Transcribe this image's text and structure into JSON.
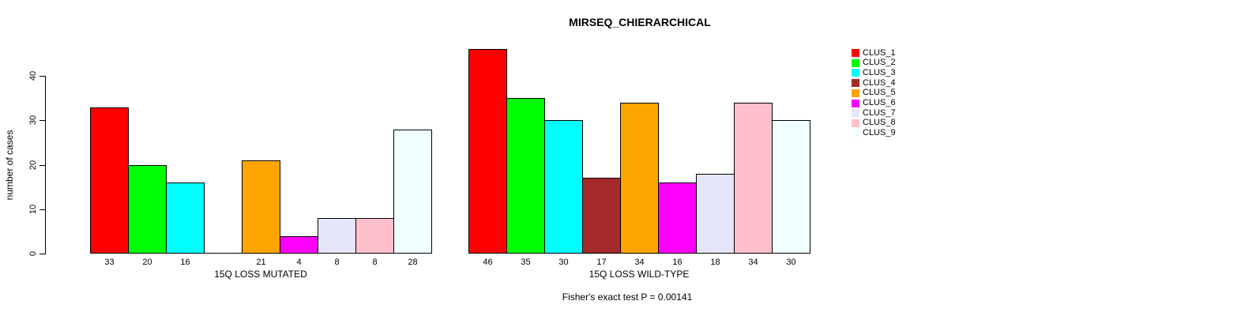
{
  "chart_data": {
    "type": "bar",
    "title": "MIRSEQ_CHIERARCHICAL",
    "ylabel": "number of cases",
    "ylim": [
      0,
      47
    ],
    "yticks": [
      0,
      10,
      20,
      30,
      40
    ],
    "grid": false,
    "categories": [
      "CLUS_1",
      "CLUS_2",
      "CLUS_3",
      "CLUS_4",
      "CLUS_5",
      "CLUS_6",
      "CLUS_7",
      "CLUS_8",
      "CLUS_9"
    ],
    "colors": [
      "#FF0000",
      "#00FF00",
      "#00FFFF",
      "#A52A2A",
      "#FFA500",
      "#FF00FF",
      "#E6E6FA",
      "#FFC0CB",
      "#F0FFFF"
    ],
    "series": [
      {
        "name": "15Q LOSS MUTATED",
        "values": [
          33,
          20,
          16,
          0,
          21,
          4,
          8,
          8,
          28
        ]
      },
      {
        "name": "15Q LOSS WILD-TYPE",
        "values": [
          46,
          35,
          30,
          17,
          34,
          16,
          18,
          34,
          30
        ]
      }
    ],
    "bar_value_labels": true,
    "hide_zero_value_labels": true,
    "legend_position": "right",
    "annotation": "Fisher's exact test P = 0.00141"
  }
}
